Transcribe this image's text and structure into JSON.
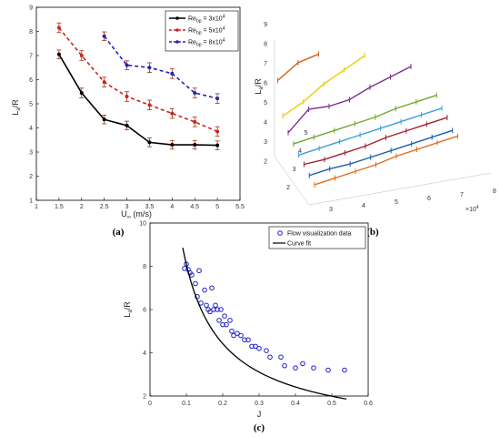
{
  "chart_data": [
    {
      "type": "line",
      "panel_label": "(a)",
      "xlabel": "U∞ (m/s)",
      "ylabel": "La/R",
      "xlim": [
        1,
        5.5
      ],
      "ylim": [
        1,
        9
      ],
      "xticks": [
        "1",
        "1.5",
        "2",
        "2.5",
        "3",
        "3.5",
        "4",
        "4.5",
        "5",
        "5.5"
      ],
      "yticks": [
        "1",
        "2",
        "3",
        "4",
        "5",
        "6",
        "7",
        "8",
        "9"
      ],
      "legend_position": "top-right",
      "grid": false,
      "series": [
        {
          "name": "Re_bp = 3x10^4",
          "legend_main": "Re",
          "legend_sub": "bp",
          "legend_rest": " = 3x10",
          "legend_sup": "4",
          "style": "solid",
          "color": "#000000",
          "marker": "circle",
          "x": [
            1.5,
            2,
            2.5,
            3,
            3.5,
            4,
            4.5,
            5
          ],
          "y": [
            7.05,
            5.45,
            4.35,
            4.1,
            3.4,
            3.3,
            3.3,
            3.28
          ],
          "err": [
            0.18,
            0.2,
            0.18,
            0.18,
            0.18,
            0.18,
            0.18,
            0.18
          ]
        },
        {
          "name": "Re_bp = 5x10^4",
          "legend_main": "Re",
          "legend_sub": "bp",
          "legend_rest": " = 5x10",
          "legend_sup": "4",
          "style": "dashed",
          "color": "#cc2222",
          "marker": "circle",
          "x": [
            1.5,
            2,
            2.5,
            3,
            3.5,
            4,
            4.5,
            5
          ],
          "y": [
            8.15,
            7.0,
            5.9,
            5.3,
            4.95,
            4.6,
            4.25,
            3.85
          ],
          "err": [
            0.2,
            0.2,
            0.2,
            0.2,
            0.2,
            0.2,
            0.2,
            0.2
          ]
        },
        {
          "name": "Re_bp = 8x10^4",
          "legend_main": "Re",
          "legend_sub": "bp",
          "legend_rest": " = 8x10",
          "legend_sup": "4",
          "style": "dashed",
          "color": "#2222bb",
          "marker": "circle",
          "x": [
            2.5,
            3,
            3.5,
            4,
            4.5,
            5
          ],
          "y": [
            7.8,
            6.6,
            6.5,
            6.25,
            5.45,
            5.22
          ],
          "err": [
            0.18,
            0.18,
            0.2,
            0.2,
            0.2,
            0.2
          ]
        }
      ]
    },
    {
      "type": "line",
      "panel_label": "(b)",
      "projection": "3d",
      "ylabel": "La/R",
      "zticks": [
        "2",
        "3",
        "4",
        "5",
        "6",
        "7",
        "8",
        "9"
      ],
      "depth_ticks": [
        "2",
        "3",
        "4",
        "5"
      ],
      "x_ticks": [
        "3",
        "4",
        "5",
        "6",
        "7",
        "8"
      ],
      "x_exponent": "×10^4",
      "x_exponent_base": "×10",
      "x_exponent_sup": "4",
      "series": [
        {
          "color": "#e07020",
          "values": [
            2.1,
            2.4,
            2.7,
            3.0,
            3.4,
            3.7,
            4.0,
            4.3
          ]
        },
        {
          "color": "#1f5fa8",
          "values": [
            2.5,
            2.8,
            3.0,
            3.3,
            3.6,
            3.9,
            4.2,
            4.5
          ]
        },
        {
          "color": "#a02030",
          "values": [
            3.0,
            3.2,
            3.5,
            3.8,
            4.2,
            4.5,
            4.8,
            5.1
          ]
        },
        {
          "color": "#3aa0d8",
          "values": [
            3.4,
            3.7,
            4.0,
            4.3,
            4.6,
            4.9,
            5.2,
            5.5
          ]
        },
        {
          "color": "#70a830",
          "values": [
            3.9,
            4.2,
            4.5,
            4.8,
            5.1,
            5.5,
            5.8,
            6.1
          ]
        },
        {
          "color": "#7a3090",
          "values": [
            4.4,
            5.6,
            5.7,
            6.0,
            6.6,
            7.1,
            7.6
          ]
        },
        {
          "color": "#e8d000",
          "values": [
            5.2,
            5.9,
            6.8,
            7.5,
            8.2
          ]
        },
        {
          "color": "#d06018",
          "values": [
            7.0,
            7.9,
            8.3
          ]
        }
      ]
    },
    {
      "type": "scatter",
      "panel_label": "(c)",
      "xlabel": "J",
      "ylabel": "La/R",
      "xlim": [
        0,
        0.6
      ],
      "ylim": [
        2,
        10
      ],
      "xticks": [
        "0",
        "0.1",
        "0.2",
        "0.3",
        "0.4",
        "0.5",
        "0.6"
      ],
      "yticks": [
        "2",
        "4",
        "6",
        "8",
        "10"
      ],
      "legend_position": "top-right",
      "series": [
        {
          "name": "Flow visualization data",
          "color": "#1f1fcf",
          "marker": "circle",
          "points": [
            [
              0.095,
              7.9
            ],
            [
              0.1,
              8.1
            ],
            [
              0.105,
              7.85
            ],
            [
              0.11,
              7.7
            ],
            [
              0.115,
              7.6
            ],
            [
              0.125,
              7.2
            ],
            [
              0.13,
              6.6
            ],
            [
              0.135,
              7.8
            ],
            [
              0.14,
              6.3
            ],
            [
              0.15,
              6.9
            ],
            [
              0.155,
              6.2
            ],
            [
              0.16,
              6.0
            ],
            [
              0.165,
              5.9
            ],
            [
              0.17,
              7.0
            ],
            [
              0.175,
              6.0
            ],
            [
              0.18,
              6.2
            ],
            [
              0.185,
              6.0
            ],
            [
              0.19,
              5.5
            ],
            [
              0.195,
              6.0
            ],
            [
              0.2,
              5.3
            ],
            [
              0.205,
              5.7
            ],
            [
              0.21,
              5.3
            ],
            [
              0.22,
              5.5
            ],
            [
              0.225,
              5.0
            ],
            [
              0.23,
              4.8
            ],
            [
              0.24,
              4.9
            ],
            [
              0.25,
              4.8
            ],
            [
              0.26,
              4.6
            ],
            [
              0.27,
              4.6
            ],
            [
              0.28,
              4.3
            ],
            [
              0.29,
              4.3
            ],
            [
              0.3,
              4.2
            ],
            [
              0.32,
              4.1
            ],
            [
              0.33,
              3.8
            ],
            [
              0.36,
              3.8
            ],
            [
              0.37,
              3.4
            ],
            [
              0.4,
              3.3
            ],
            [
              0.42,
              3.5
            ],
            [
              0.45,
              3.3
            ],
            [
              0.49,
              3.2
            ],
            [
              0.535,
              3.2
            ]
          ]
        },
        {
          "name": "Curve fit",
          "color": "#000000",
          "style": "solid",
          "function": "power",
          "a": 1.09,
          "b": -0.87,
          "x_range": [
            0.09,
            0.54
          ]
        }
      ]
    }
  ]
}
